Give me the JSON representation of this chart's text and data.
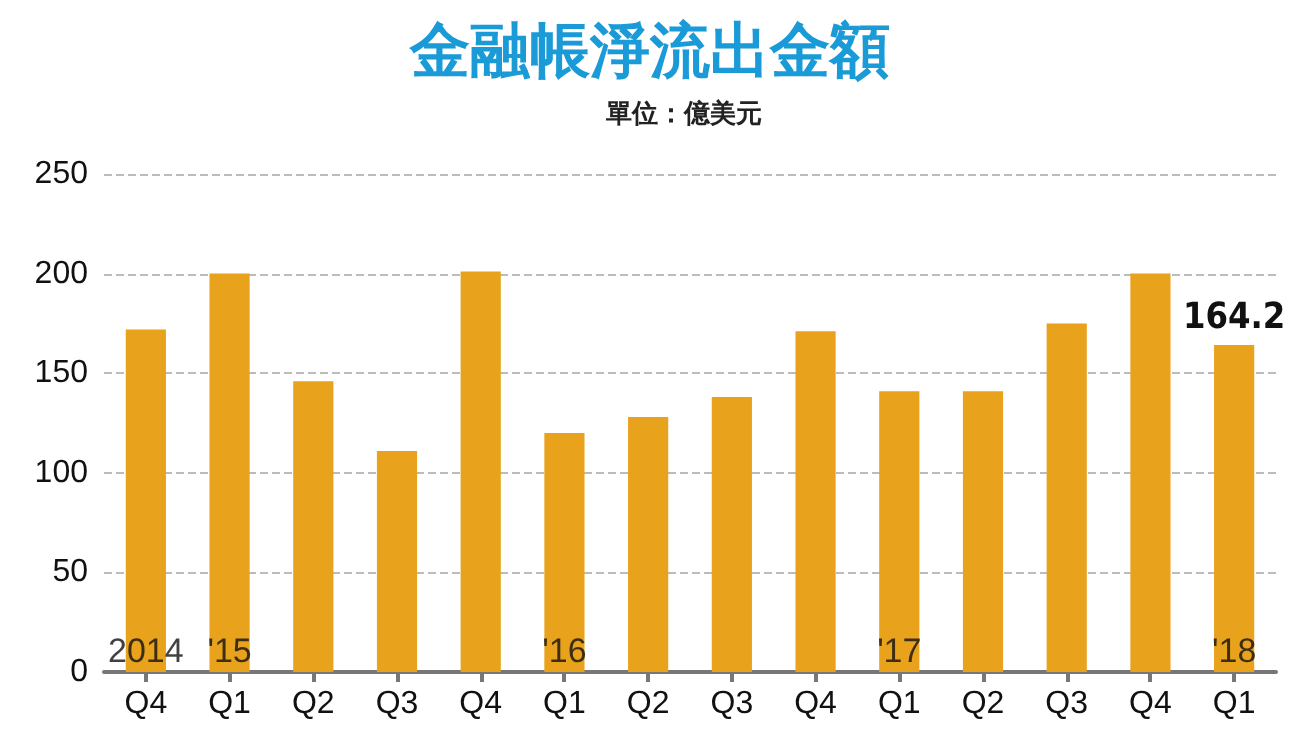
{
  "chart_data": {
    "type": "bar",
    "title": "金融帳淨流出金額",
    "subtitle": "單位：億美元",
    "categories": [
      "Q4",
      "Q1",
      "Q2",
      "Q3",
      "Q4",
      "Q1",
      "Q2",
      "Q3",
      "Q4",
      "Q1",
      "Q2",
      "Q3",
      "Q4",
      "Q1"
    ],
    "values": [
      172,
      200,
      146,
      111,
      201,
      120,
      128,
      138,
      171,
      141,
      141,
      175,
      200,
      164.2
    ],
    "value_labels": [
      null,
      null,
      null,
      null,
      null,
      null,
      null,
      null,
      null,
      null,
      null,
      null,
      null,
      "164.2"
    ],
    "color": "#e8a21c",
    "ylim": [
      0,
      250
    ],
    "yticks": [
      0,
      50,
      100,
      150,
      200,
      250
    ],
    "grid": "y",
    "annotations": [
      "2014",
      "'15",
      "'16",
      "'17",
      "'18"
    ]
  }
}
